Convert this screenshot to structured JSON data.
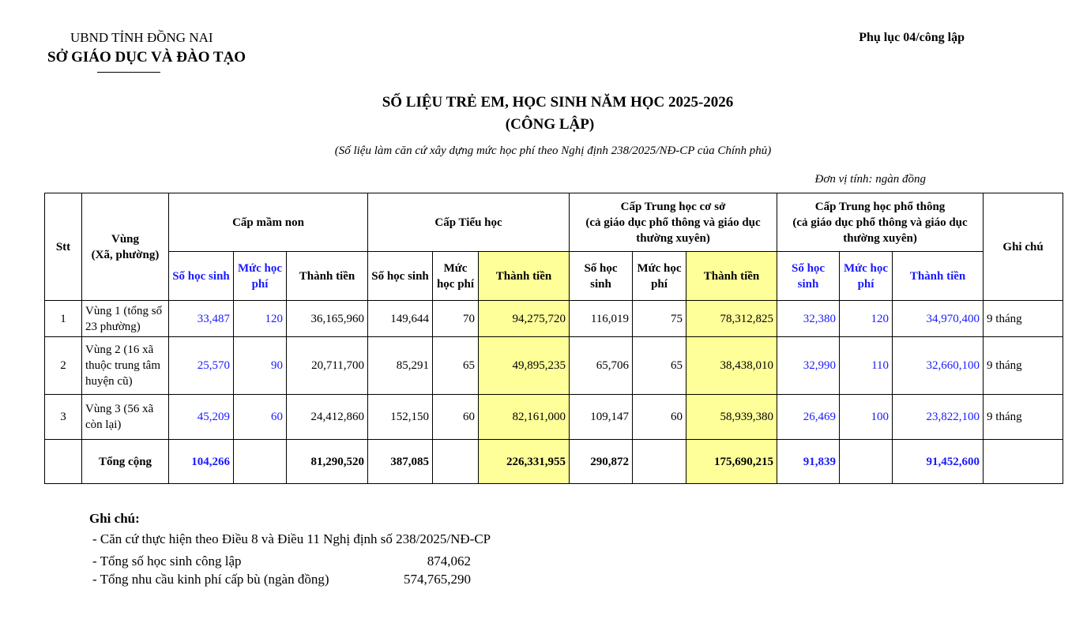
{
  "header": {
    "province": "UBND TỈNH ĐỒNG NAI",
    "department": "SỞ GIÁO DỤC VÀ ĐÀO TẠO",
    "appendix": "Phụ lục 04/công lập"
  },
  "title": {
    "line1": "SỐ LIỆU TRẺ EM, HỌC SINH NĂM HỌC 2025-2026",
    "line2": "(CÔNG LẬP)"
  },
  "subtitle": "(Số liệu làm căn cứ xây dựng mức học phí theo Nghị định 238/2025/NĐ-CP của Chính phủ)",
  "unit": "Đơn vị tính: ngàn đồng",
  "table": {
    "head": {
      "stt": "Stt",
      "region": "Vùng",
      "region_note": "(Xã, phường)",
      "remarks": "Ghi chú",
      "groups": [
        {
          "label": "Cấp mầm non",
          "columns": [
            "Số học sinh",
            "Mức học phí",
            "Thành tiền"
          ]
        },
        {
          "label": "Cấp Tiểu học",
          "columns": [
            "Số học sinh",
            "Mức học phí",
            "Thành tiền"
          ]
        },
        {
          "label": "Cấp Trung học cơ sở",
          "note": "(cả giáo dục phổ thông và giáo dục thường xuyên)",
          "columns": [
            "Số học sinh",
            "Mức học phí",
            "Thành tiền"
          ]
        },
        {
          "label": "Cấp Trung học phổ thông",
          "note": "(cả giáo dục phổ thông và giáo dục thường xuyên)",
          "columns": [
            "Số học sinh",
            "Mức học phí",
            "Thành tiền"
          ]
        }
      ]
    },
    "rows": [
      [
        "1",
        "Vùng 1 (tổng số 23 phường)",
        "33,487",
        "120",
        "36,165,960",
        "149,644",
        "70",
        "94,275,720",
        "116,019",
        "75",
        "78,312,825",
        "32,380",
        "120",
        "34,970,400",
        "9 tháng"
      ],
      [
        "2",
        "Vùng 2 (16 xã thuộc trung tâm huyện cũ)",
        "25,570",
        "90",
        "20,711,700",
        "85,291",
        "65",
        "49,895,235",
        "65,706",
        "65",
        "38,438,010",
        "32,990",
        "110",
        "32,660,100",
        "9 tháng"
      ],
      [
        "3",
        "Vùng 3 (56 xã còn lại)",
        "45,209",
        "60",
        "24,412,860",
        "152,150",
        "60",
        "82,161,000",
        "109,147",
        "60",
        "58,939,380",
        "26,469",
        "100",
        "23,822,100",
        "9 tháng"
      ]
    ],
    "total": [
      null,
      "Tổng cộng",
      "104,266",
      null,
      "81,290,520",
      "387,085",
      null,
      "226,331,955",
      "290,872",
      null,
      "175,690,215",
      "91,839",
      null,
      "91,452,600",
      null
    ]
  },
  "notes": {
    "heading": "Ghi chú:",
    "items": [
      {
        "text": "- Căn cứ thực hiện theo Điều 8 và Điều 11 Nghị định số 238/2025/NĐ-CP"
      },
      {
        "text": "- Tổng số học sinh công lập",
        "value": "874,062"
      },
      {
        "text": "- Tổng nhu cầu kinh phí cấp bù (ngàn đồng)",
        "value": "574,765,290"
      }
    ]
  }
}
